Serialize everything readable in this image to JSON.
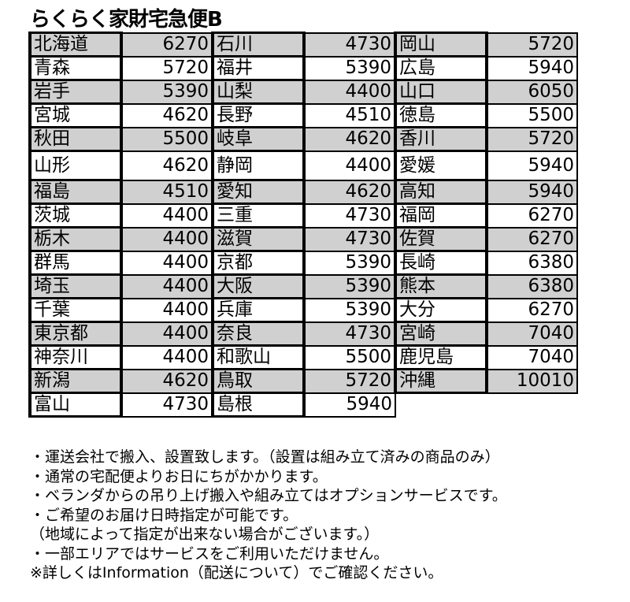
{
  "title": "らくらく家財宅急便B",
  "rows": [
    [
      [
        "北海道",
        "6270"
      ],
      [
        "石川",
        "4730"
      ],
      [
        "岡山",
        "5720"
      ]
    ],
    [
      [
        "青森",
        "5720"
      ],
      [
        "福井",
        "5390"
      ],
      [
        "広島",
        "5940"
      ]
    ],
    [
      [
        "岩手",
        "5390"
      ],
      [
        "山梨",
        "4400"
      ],
      [
        "山口",
        "6050"
      ]
    ],
    [
      [
        "宮城",
        "4620"
      ],
      [
        "長野",
        "4510"
      ],
      [
        "徳島",
        "5500"
      ]
    ],
    [
      [
        "秋田",
        "5500"
      ],
      [
        "岐阜",
        "4620"
      ],
      [
        "香川",
        "5720"
      ]
    ],
    [
      [
        "山形",
        "4620"
      ],
      [
        "静岡",
        "4400"
      ],
      [
        "愛媛",
        "5940"
      ]
    ],
    [
      [
        "福島",
        "4510"
      ],
      [
        "愛知",
        "4620"
      ],
      [
        "高知",
        "5940"
      ]
    ],
    [
      [
        "茨城",
        "4400"
      ],
      [
        "三重",
        "4730"
      ],
      [
        "福岡",
        "6270"
      ]
    ],
    [
      [
        "栃木",
        "4400"
      ],
      [
        "滋賀",
        "4730"
      ],
      [
        "佐賀",
        "6270"
      ]
    ],
    [
      [
        "群馬",
        "4400"
      ],
      [
        "京都",
        "5390"
      ],
      [
        "長崎",
        "6380"
      ]
    ],
    [
      [
        "埼玉",
        "4400"
      ],
      [
        "大阪",
        "5390"
      ],
      [
        "熊本",
        "6380"
      ]
    ],
    [
      [
        "千葉",
        "4400"
      ],
      [
        "兵庫",
        "5390"
      ],
      [
        "大分",
        "6270"
      ]
    ],
    [
      [
        "東京都",
        "4400"
      ],
      [
        "奈良",
        "4730"
      ],
      [
        "宮崎",
        "7040"
      ]
    ],
    [
      [
        "神奈川",
        "4400"
      ],
      [
        "和歌山",
        "5500"
      ],
      [
        "鹿児島",
        "7040"
      ]
    ],
    [
      [
        "新潟",
        "4620"
      ],
      [
        "鳥取",
        "5720"
      ],
      [
        "沖縄",
        "10010"
      ]
    ],
    [
      [
        "富山",
        "4730"
      ],
      [
        "島根",
        "5940"
      ]
    ]
  ],
  "notes": [
    "・運送会社で搬入、設置致します。（設置は組み立て済みの商品のみ）",
    "・通常の宅配便よりお日にちがかかります。",
    "・ベランダからの吊り上げ搬入や組み立てはオプションサービスです。",
    "・ご希望のお届け日時指定が可能です。",
    "（地域によって指定が出来ない場合がございます。）",
    "・一部エリアではサービスをご利用いただけません。",
    "※詳しくはInformation（配送について）でご確認ください。"
  ],
  "colors": {
    "shaded_row": "#d0d0d0",
    "border": "#000000"
  }
}
